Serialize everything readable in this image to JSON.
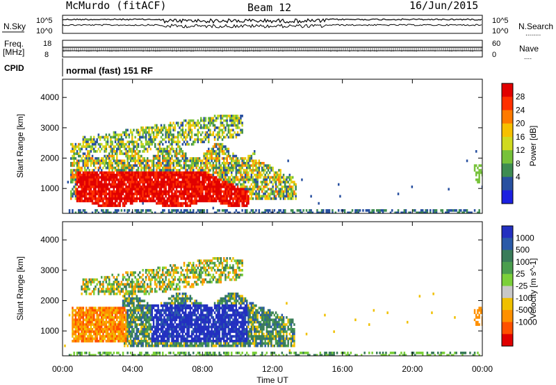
{
  "header": {
    "station": "McMurdo (fitACF)",
    "beam": "Beam 12",
    "date": "16/Jun/2015"
  },
  "noise_panel": {
    "left_label": "N.Sky",
    "right_label": "N.Search",
    "right_legend": "........",
    "ticks_left": [
      "10^5",
      "10^0"
    ],
    "ticks_right": [
      "10^5",
      "10^0"
    ]
  },
  "freq_panel": {
    "left_label_1": "Freq.",
    "left_label_2": "[MHz]",
    "right_label": "Nave",
    "right_legend": "....",
    "ticks_left": [
      "18",
      "8"
    ],
    "ticks_right": [
      "60",
      "0"
    ]
  },
  "cpid": {
    "label": "CPID",
    "value": "normal (fast) 151 RF"
  },
  "chart_data": [
    {
      "type": "heatmap",
      "title": "",
      "xlabel": "Time UT",
      "ylabel": "Slant Range [km]",
      "xlim_hours": [
        0,
        24
      ],
      "ylim": [
        180,
        4600
      ],
      "yticks": [
        1000,
        2000,
        3000,
        4000
      ],
      "ytick_labels": [
        "1000",
        "2000",
        "3000",
        "4000"
      ],
      "colorbar": {
        "label": "Power [dB]",
        "ticks": [
          "28",
          "24",
          "20",
          "16",
          "12",
          "8",
          "4"
        ],
        "colors": [
          "#e10000",
          "#ff3000",
          "#ff7a00",
          "#f7c000",
          "#d0da20",
          "#77c23a",
          "#3e8c52",
          "#2850a0",
          "#1b20e0"
        ]
      },
      "regions": [
        {
          "label_level": "24-30 dB",
          "t_start": 0.7,
          "t_end": 10.5,
          "r_min": 450,
          "r_max": 1600
        },
        {
          "label_level": "8-20 dB",
          "t_start": 0.5,
          "t_end": 13.2,
          "r_min": 700,
          "r_max": 2600
        },
        {
          "label_level": "4-16 dB",
          "t_start": 1.0,
          "t_end": 10.3,
          "r_min": 2200,
          "r_max": 3600
        },
        {
          "label_level": "4-12 dB",
          "t_start": 0.2,
          "t_end": 24,
          "r_min": 200,
          "r_max": 400
        }
      ]
    },
    {
      "type": "heatmap",
      "title": "",
      "xlabel": "Time UT",
      "ylabel": "Slant Range [km]",
      "xlim_hours": [
        0,
        24
      ],
      "ylim": [
        180,
        4600
      ],
      "xticks": [
        "00:00",
        "04:00",
        "08:00",
        "12:00",
        "16:00",
        "20:00",
        "00:00"
      ],
      "yticks": [
        1000,
        2000,
        3000,
        4000
      ],
      "ytick_labels": [
        "1000",
        "2000",
        "3000",
        "4000"
      ],
      "colorbar": {
        "label": "Velocity [m s^-1]",
        "ticks": [
          "1000",
          "500",
          "100",
          "25",
          "-25",
          "-100",
          "-500",
          "-1000"
        ],
        "colors": [
          "#2330c0",
          "#2a5aa8",
          "#3a7c5a",
          "#4b9e4e",
          "#7cd03a",
          "#c8c8c8",
          "#f0c000",
          "#ff9000",
          "#ff5000",
          "#e00000"
        ]
      },
      "regions": [
        {
          "label_level": "-100 to -500 m/s",
          "t_start": 0.5,
          "t_end": 3.5,
          "r_min": 700,
          "r_max": 1800
        },
        {
          "label_level": "100-500 m/s",
          "t_start": 3.5,
          "t_end": 13.0,
          "r_min": 500,
          "r_max": 2200
        },
        {
          "label_level": "500-1000 m/s",
          "t_start": 5.0,
          "t_end": 10.5,
          "r_min": 700,
          "r_max": 1900
        },
        {
          "label_level": "25-100 m/s",
          "t_start": 1.0,
          "t_end": 10.5,
          "r_min": 2200,
          "r_max": 3600
        }
      ]
    }
  ],
  "colors": {
    "axis": "#000000",
    "background": "#ffffff"
  }
}
